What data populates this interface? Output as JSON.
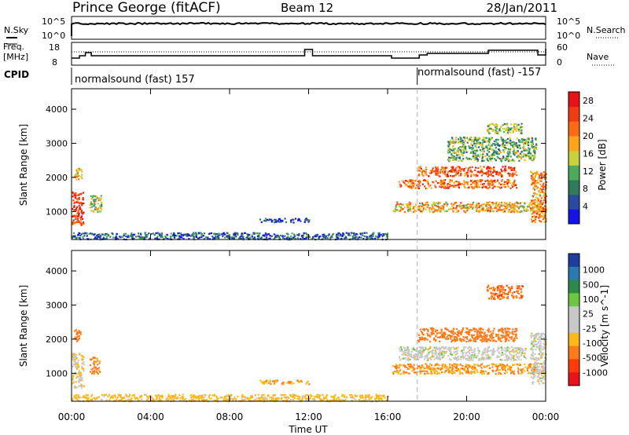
{
  "header": {
    "station": "Prince George (fitACF)",
    "beam": "Beam 12",
    "date": "28/Jan/2011"
  },
  "noise_panel": {
    "left_label": "N.Sky",
    "right_label": "N.Search",
    "left_ticks": [
      "10^5",
      "10^0"
    ],
    "right_ticks": [
      "10^5",
      "10^0"
    ]
  },
  "freq_panel": {
    "left_label_1": "Freq.",
    "left_label_2": "[MHz]",
    "left_ticks": [
      "18",
      "8"
    ],
    "right_label": "Nave",
    "right_ticks": [
      "60",
      "0"
    ]
  },
  "cpid_panel": {
    "label": "CPID",
    "segments": [
      "normalsound (fast) 157",
      "normalsound (fast) -157"
    ],
    "change_time_hours": 17.5
  },
  "colors": {
    "velocity_scale": [
      "#e8141c",
      "#ff3b0a",
      "#ff7a1a",
      "#ffb81c",
      "#c8c8c8",
      "#c8c8c8",
      "#6cc83c",
      "#2e8a4a",
      "#2a7ab0",
      "#1f3ca0"
    ],
    "power_scale": [
      "#1414e6",
      "#2a4aa0",
      "#2e7a5a",
      "#4caa5a",
      "#c8d23c",
      "#ffa51c",
      "#ff6b14",
      "#f03c14",
      "#e61414"
    ]
  },
  "chart_data": [
    {
      "type": "heatmap",
      "title": "Power [dB]",
      "ylabel": "Slant Range [km]",
      "xlabel": "",
      "x_range_hours": [
        0,
        24
      ],
      "y_range_km": [
        180,
        4600
      ],
      "yticks": [
        "1000",
        "2000",
        "3000",
        "4000"
      ],
      "colorbar_label": "Power [dB]",
      "colorbar_ticks": [
        "4",
        "8",
        "12",
        "16",
        "20",
        "24",
        "28"
      ],
      "colorbar_range": [
        0,
        30
      ],
      "regions": [
        {
          "t0": 0.0,
          "t1": 0.6,
          "r0": 600,
          "r1": 1600,
          "value": 26
        },
        {
          "t0": 0.1,
          "t1": 0.5,
          "r0": 1950,
          "r1": 2300,
          "value": 18
        },
        {
          "t0": 0.9,
          "t1": 1.5,
          "r0": 1000,
          "r1": 1500,
          "value": 14
        },
        {
          "t0": 0.0,
          "t1": 16.0,
          "r0": 200,
          "r1": 400,
          "value": 6
        },
        {
          "t0": 9.5,
          "t1": 12.0,
          "r0": 700,
          "r1": 820,
          "value": 5
        },
        {
          "t0": 16.2,
          "t1": 23.9,
          "r0": 1000,
          "r1": 1300,
          "value": 18
        },
        {
          "t0": 16.5,
          "t1": 22.5,
          "r0": 1700,
          "r1": 1950,
          "value": 22
        },
        {
          "t0": 17.5,
          "t1": 22.5,
          "r0": 2050,
          "r1": 2350,
          "value": 24
        },
        {
          "t0": 19.0,
          "t1": 23.5,
          "r0": 2500,
          "r1": 3200,
          "value": 12
        },
        {
          "t0": 21.0,
          "t1": 22.8,
          "r0": 3300,
          "r1": 3600,
          "value": 14
        },
        {
          "t0": 23.2,
          "t1": 24.0,
          "r0": 700,
          "r1": 2200,
          "value": 20
        }
      ]
    },
    {
      "type": "heatmap",
      "title": "Velocity [m s^-1]",
      "ylabel": "Slant Range [km]",
      "xlabel": "Time UT",
      "x_range_hours": [
        0,
        24
      ],
      "y_range_km": [
        180,
        4600
      ],
      "yticks": [
        "1000",
        "2000",
        "3000",
        "4000"
      ],
      "xticks": [
        "00:00",
        "04:00",
        "08:00",
        "12:00",
        "16:00",
        "20:00",
        "00:00"
      ],
      "colorbar_label": "Velocity [m s^-1]",
      "colorbar_ticks": [
        "1000",
        "500",
        "100",
        "25",
        "-25",
        "-100",
        "-500",
        "-1000"
      ],
      "regions": [
        {
          "t0": 0.0,
          "t1": 0.6,
          "r0": 600,
          "r1": 1600,
          "value": -25
        },
        {
          "t0": 0.1,
          "t1": 0.5,
          "r0": 1950,
          "r1": 2300,
          "value": -200
        },
        {
          "t0": 0.9,
          "t1": 1.4,
          "r0": 1000,
          "r1": 1500,
          "value": -150
        },
        {
          "t0": 0.0,
          "t1": 16.0,
          "r0": 200,
          "r1": 400,
          "value": -50
        },
        {
          "t0": 9.5,
          "t1": 12.0,
          "r0": 700,
          "r1": 820,
          "value": -100
        },
        {
          "t0": 16.2,
          "t1": 23.9,
          "r0": 1000,
          "r1": 1300,
          "value": -100
        },
        {
          "t0": 16.5,
          "t1": 23.0,
          "r0": 1400,
          "r1": 1800,
          "value": 0
        },
        {
          "t0": 17.5,
          "t1": 22.5,
          "r0": 1950,
          "r1": 2350,
          "value": -300
        },
        {
          "t0": 21.0,
          "t1": 22.8,
          "r0": 3200,
          "r1": 3600,
          "value": -400
        },
        {
          "t0": 23.2,
          "t1": 24.0,
          "r0": 700,
          "r1": 2200,
          "value": 0
        }
      ]
    }
  ]
}
